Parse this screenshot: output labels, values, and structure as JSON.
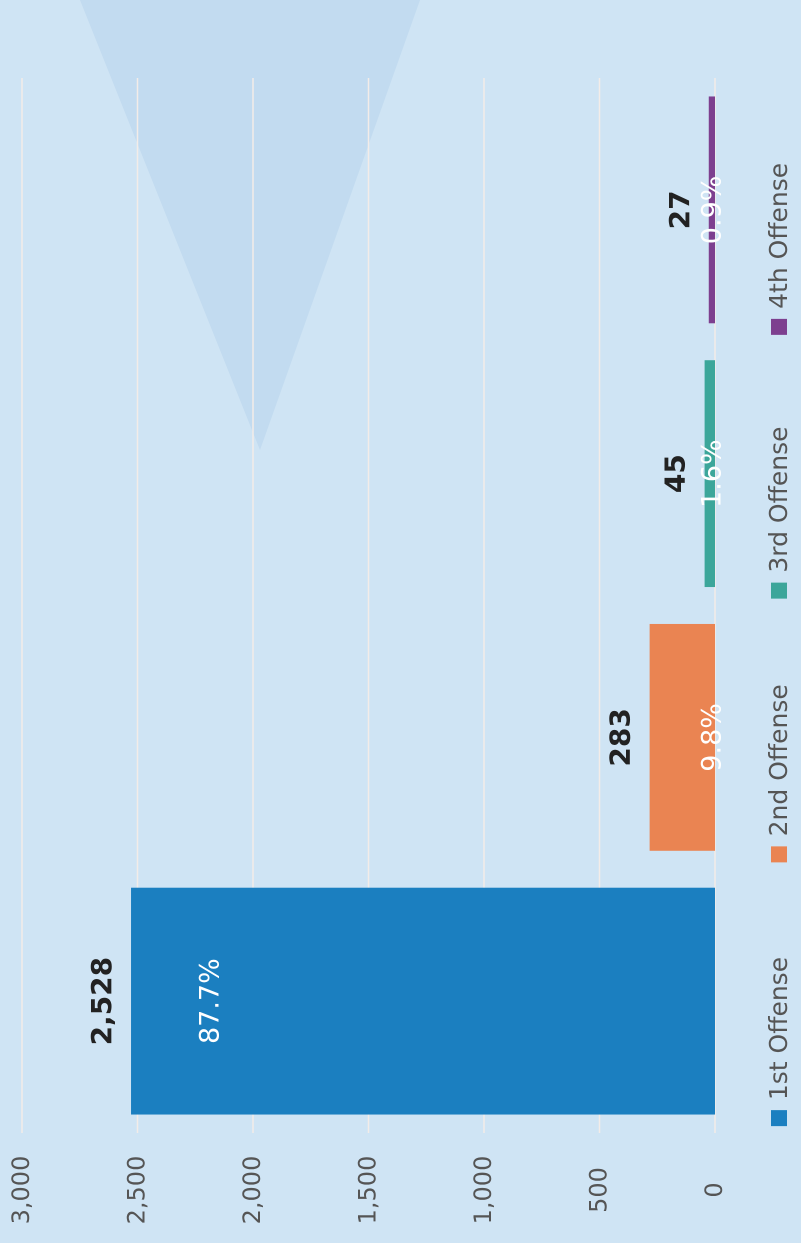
{
  "chart_data": {
    "type": "bar",
    "categories": [
      "1st Offense",
      "2nd Offense",
      "3rd Offense",
      "4th Offense"
    ],
    "values": [
      2528,
      283,
      45,
      27
    ],
    "value_labels": [
      "2,528",
      "283",
      "45",
      "27"
    ],
    "share_labels": [
      "87.7%",
      "9.8%",
      "1.6%",
      "0.9%"
    ],
    "colors": [
      "#1b7fc0",
      "#ea8452",
      "#3ca69a",
      "#7d3f8f"
    ],
    "ylim": [
      0,
      3000
    ],
    "yticks": [
      0,
      {
        "value": 500,
        "label": "500"
      },
      {
        "value": 1000,
        "label": "1,000"
      },
      {
        "value": 1500,
        "label": "1,500"
      },
      {
        "value": 2000,
        "label": "2,000"
      },
      {
        "value": 2500,
        "label": "2,500"
      },
      {
        "value": 3000,
        "label": "3,000"
      }
    ],
    "grid": true,
    "legend": "bottom"
  }
}
